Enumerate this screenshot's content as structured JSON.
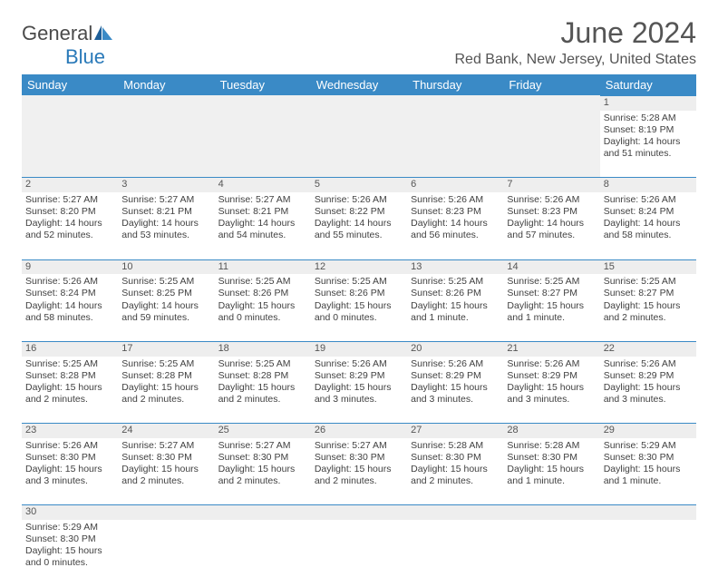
{
  "logo": {
    "word1": "General",
    "word2": "Blue"
  },
  "title": "June 2024",
  "location": "Red Bank, New Jersey, United States",
  "weekdays": [
    "Sunday",
    "Monday",
    "Tuesday",
    "Wednesday",
    "Thursday",
    "Friday",
    "Saturday"
  ],
  "colors": {
    "header_bg": "#3a8ac6",
    "header_text": "#ffffff",
    "daynum_bg": "#eeeeee",
    "daynum_border": "#3a8ac6",
    "text": "#414141",
    "logo_gray": "#4a4a4a",
    "logo_blue": "#2a7ab9"
  },
  "fonts": {
    "title_size": 32,
    "location_size": 16,
    "th_size": 13,
    "cell_size": 10.5
  },
  "rows": [
    {
      "dayNums": [
        "",
        "",
        "",
        "",
        "",
        "",
        "1"
      ],
      "details": [
        "",
        "",
        "",
        "",
        "",
        "",
        "Sunrise: 5:28 AM\nSunset: 8:19 PM\nDaylight: 14 hours and 51 minutes."
      ]
    },
    {
      "dayNums": [
        "2",
        "3",
        "4",
        "5",
        "6",
        "7",
        "8"
      ],
      "details": [
        "Sunrise: 5:27 AM\nSunset: 8:20 PM\nDaylight: 14 hours and 52 minutes.",
        "Sunrise: 5:27 AM\nSunset: 8:21 PM\nDaylight: 14 hours and 53 minutes.",
        "Sunrise: 5:27 AM\nSunset: 8:21 PM\nDaylight: 14 hours and 54 minutes.",
        "Sunrise: 5:26 AM\nSunset: 8:22 PM\nDaylight: 14 hours and 55 minutes.",
        "Sunrise: 5:26 AM\nSunset: 8:23 PM\nDaylight: 14 hours and 56 minutes.",
        "Sunrise: 5:26 AM\nSunset: 8:23 PM\nDaylight: 14 hours and 57 minutes.",
        "Sunrise: 5:26 AM\nSunset: 8:24 PM\nDaylight: 14 hours and 58 minutes."
      ]
    },
    {
      "dayNums": [
        "9",
        "10",
        "11",
        "12",
        "13",
        "14",
        "15"
      ],
      "details": [
        "Sunrise: 5:26 AM\nSunset: 8:24 PM\nDaylight: 14 hours and 58 minutes.",
        "Sunrise: 5:25 AM\nSunset: 8:25 PM\nDaylight: 14 hours and 59 minutes.",
        "Sunrise: 5:25 AM\nSunset: 8:26 PM\nDaylight: 15 hours and 0 minutes.",
        "Sunrise: 5:25 AM\nSunset: 8:26 PM\nDaylight: 15 hours and 0 minutes.",
        "Sunrise: 5:25 AM\nSunset: 8:26 PM\nDaylight: 15 hours and 1 minute.",
        "Sunrise: 5:25 AM\nSunset: 8:27 PM\nDaylight: 15 hours and 1 minute.",
        "Sunrise: 5:25 AM\nSunset: 8:27 PM\nDaylight: 15 hours and 2 minutes."
      ]
    },
    {
      "dayNums": [
        "16",
        "17",
        "18",
        "19",
        "20",
        "21",
        "22"
      ],
      "details": [
        "Sunrise: 5:25 AM\nSunset: 8:28 PM\nDaylight: 15 hours and 2 minutes.",
        "Sunrise: 5:25 AM\nSunset: 8:28 PM\nDaylight: 15 hours and 2 minutes.",
        "Sunrise: 5:25 AM\nSunset: 8:28 PM\nDaylight: 15 hours and 2 minutes.",
        "Sunrise: 5:26 AM\nSunset: 8:29 PM\nDaylight: 15 hours and 3 minutes.",
        "Sunrise: 5:26 AM\nSunset: 8:29 PM\nDaylight: 15 hours and 3 minutes.",
        "Sunrise: 5:26 AM\nSunset: 8:29 PM\nDaylight: 15 hours and 3 minutes.",
        "Sunrise: 5:26 AM\nSunset: 8:29 PM\nDaylight: 15 hours and 3 minutes."
      ]
    },
    {
      "dayNums": [
        "23",
        "24",
        "25",
        "26",
        "27",
        "28",
        "29"
      ],
      "details": [
        "Sunrise: 5:26 AM\nSunset: 8:30 PM\nDaylight: 15 hours and 3 minutes.",
        "Sunrise: 5:27 AM\nSunset: 8:30 PM\nDaylight: 15 hours and 2 minutes.",
        "Sunrise: 5:27 AM\nSunset: 8:30 PM\nDaylight: 15 hours and 2 minutes.",
        "Sunrise: 5:27 AM\nSunset: 8:30 PM\nDaylight: 15 hours and 2 minutes.",
        "Sunrise: 5:28 AM\nSunset: 8:30 PM\nDaylight: 15 hours and 2 minutes.",
        "Sunrise: 5:28 AM\nSunset: 8:30 PM\nDaylight: 15 hours and 1 minute.",
        "Sunrise: 5:29 AM\nSunset: 8:30 PM\nDaylight: 15 hours and 1 minute."
      ]
    },
    {
      "dayNums": [
        "30",
        "",
        "",
        "",
        "",
        "",
        ""
      ],
      "details": [
        "Sunrise: 5:29 AM\nSunset: 8:30 PM\nDaylight: 15 hours and 0 minutes.",
        "",
        "",
        "",
        "",
        "",
        ""
      ]
    }
  ]
}
